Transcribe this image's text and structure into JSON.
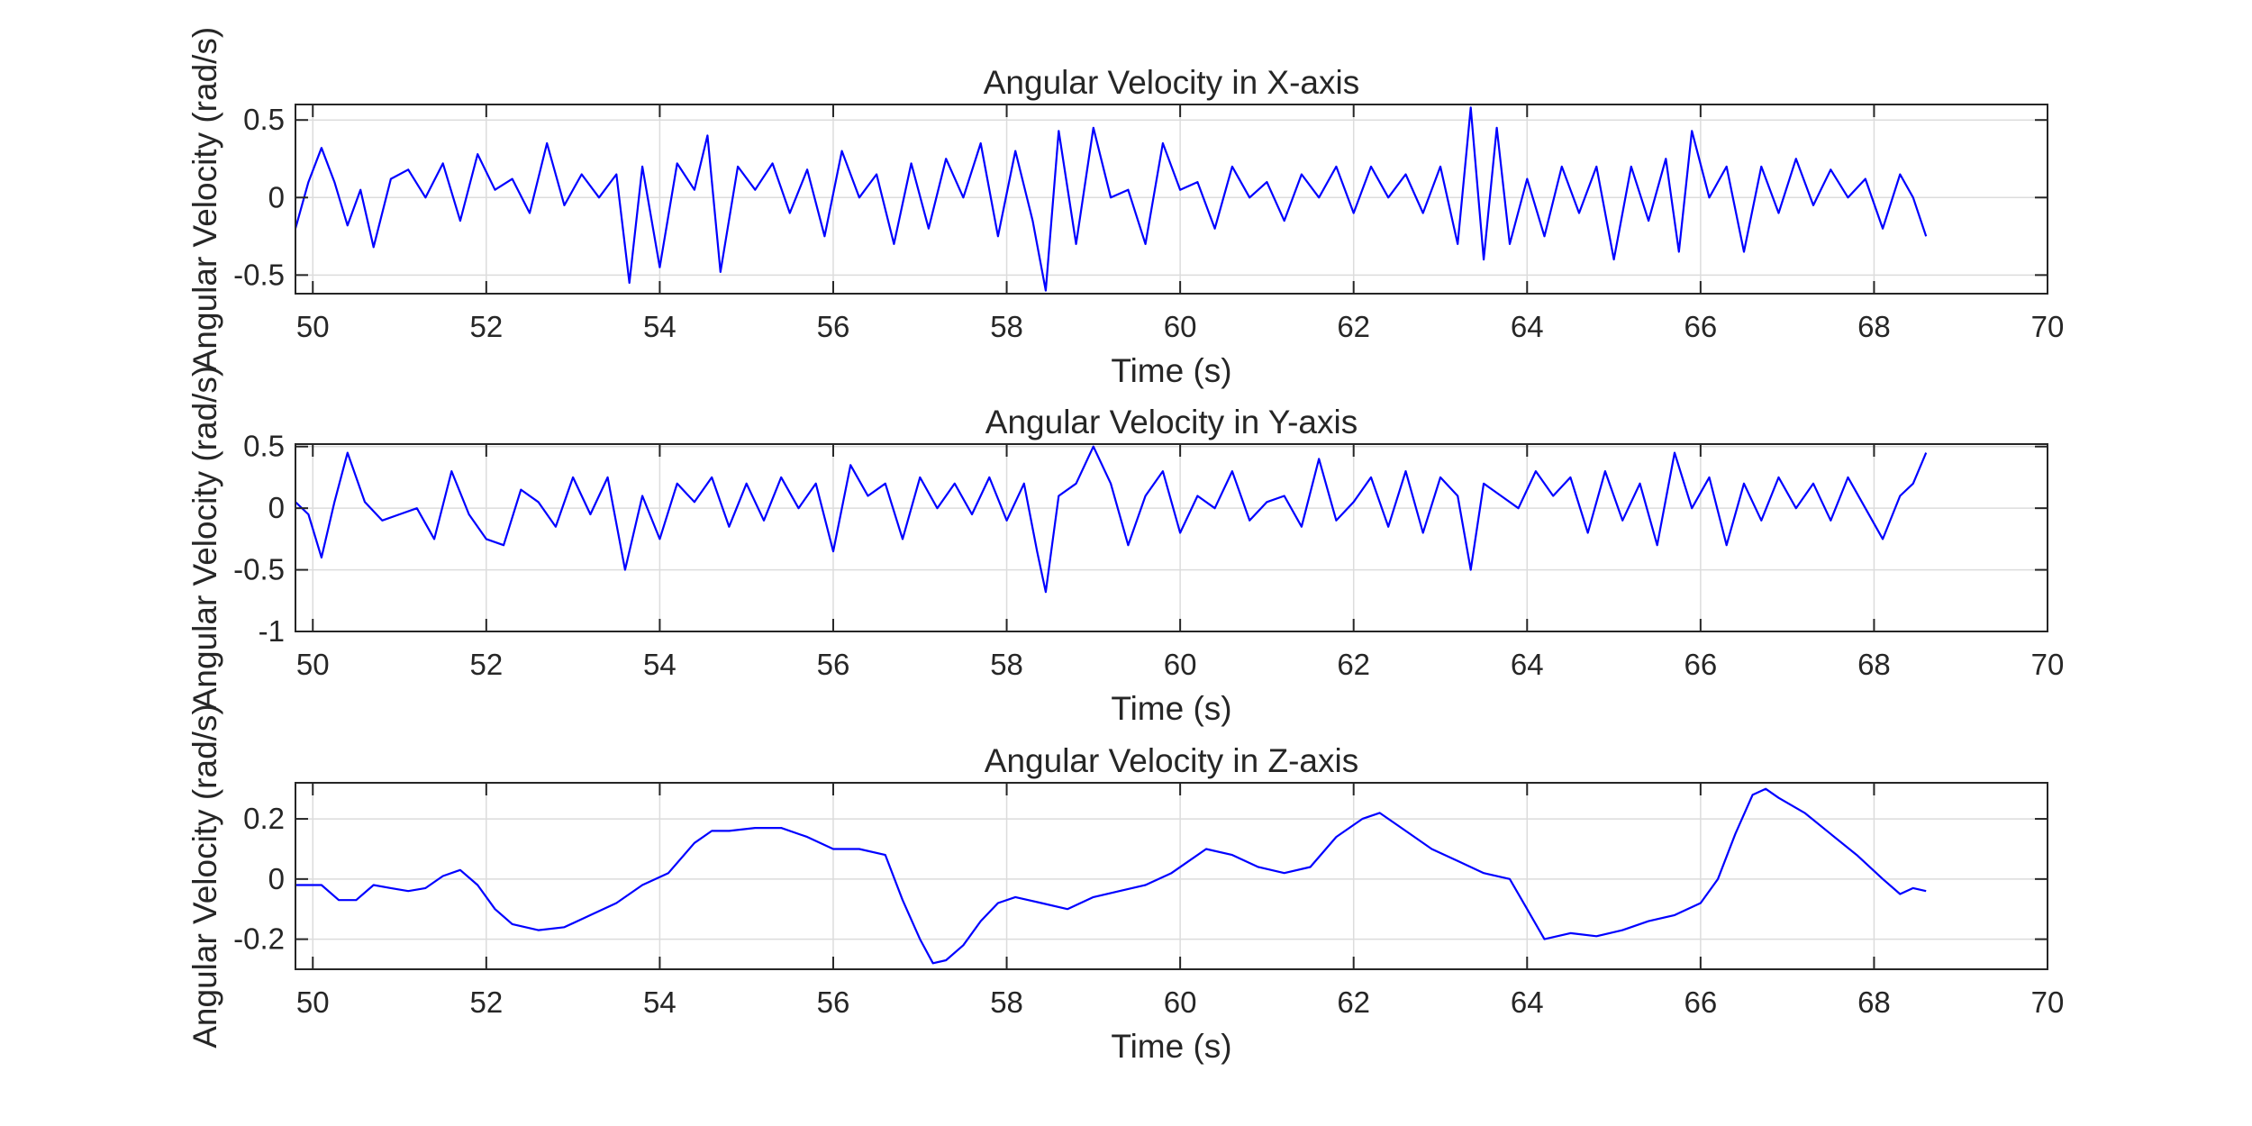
{
  "chart_data": [
    {
      "type": "line",
      "title": "Angular Velocity in X-axis",
      "xlabel": "Time (s)",
      "ylabel": "Angular Velocity (rad/s)",
      "xlim": [
        49.8,
        70
      ],
      "ylim": [
        -0.62,
        0.6
      ],
      "xticks": [
        50,
        52,
        54,
        56,
        58,
        60,
        62,
        64,
        66,
        68,
        70
      ],
      "yticks": [
        -0.5,
        0,
        0.5
      ],
      "xtick_labels": [
        "50",
        "52",
        "54",
        "56",
        "58",
        "60",
        "62",
        "64",
        "66",
        "68",
        "70"
      ],
      "ytick_labels": [
        "-0.5",
        "0",
        "0.5"
      ],
      "grid": true,
      "color": "#0000ff",
      "series": [
        {
          "x": [
            49.8,
            49.95,
            50.1,
            50.25,
            50.4,
            50.55,
            50.7,
            50.9,
            51.1,
            51.3,
            51.5,
            51.7,
            51.9,
            52.1,
            52.3,
            52.5,
            52.7,
            52.9,
            53.1,
            53.3,
            53.5,
            53.65,
            53.8,
            54.0,
            54.2,
            54.4,
            54.55,
            54.7,
            54.9,
            55.1,
            55.3,
            55.5,
            55.7,
            55.9,
            56.1,
            56.3,
            56.5,
            56.7,
            56.9,
            57.1,
            57.3,
            57.5,
            57.7,
            57.9,
            58.1,
            58.3,
            58.45,
            58.6,
            58.8,
            59.0,
            59.2,
            59.4,
            59.6,
            59.8,
            60.0,
            60.2,
            60.4,
            60.6,
            60.8,
            61.0,
            61.2,
            61.4,
            61.6,
            61.8,
            62.0,
            62.2,
            62.4,
            62.6,
            62.8,
            63.0,
            63.2,
            63.35,
            63.5,
            63.65,
            63.8,
            64.0,
            64.2,
            64.4,
            64.6,
            64.8,
            65.0,
            65.2,
            65.4,
            65.6,
            65.75,
            65.9,
            66.1,
            66.3,
            66.5,
            66.7,
            66.9,
            67.1,
            67.3,
            67.5,
            67.7,
            67.9,
            68.1,
            68.3,
            68.45,
            68.6
          ],
          "y": [
            -0.2,
            0.1,
            0.32,
            0.1,
            -0.18,
            0.05,
            -0.32,
            0.12,
            0.18,
            0.0,
            0.22,
            -0.15,
            0.28,
            0.05,
            0.12,
            -0.1,
            0.35,
            -0.05,
            0.15,
            0.0,
            0.15,
            -0.55,
            0.2,
            -0.45,
            0.22,
            0.05,
            0.4,
            -0.48,
            0.2,
            0.05,
            0.22,
            -0.1,
            0.18,
            -0.25,
            0.3,
            0.0,
            0.15,
            -0.3,
            0.22,
            -0.2,
            0.25,
            0.0,
            0.35,
            -0.25,
            0.3,
            -0.15,
            -0.6,
            0.43,
            -0.3,
            0.45,
            0.0,
            0.05,
            -0.3,
            0.35,
            0.05,
            0.1,
            -0.2,
            0.2,
            0.0,
            0.1,
            -0.15,
            0.15,
            0.0,
            0.2,
            -0.1,
            0.2,
            0.0,
            0.15,
            -0.1,
            0.2,
            -0.3,
            0.58,
            -0.4,
            0.45,
            -0.3,
            0.12,
            -0.25,
            0.2,
            -0.1,
            0.2,
            -0.4,
            0.2,
            -0.15,
            0.25,
            -0.35,
            0.43,
            0.0,
            0.2,
            -0.35,
            0.2,
            -0.1,
            0.25,
            -0.05,
            0.18,
            0.0,
            0.12,
            -0.2,
            0.15,
            0.0,
            -0.25
          ]
        }
      ]
    },
    {
      "type": "line",
      "title": "Angular Velocity in Y-axis",
      "xlabel": "Time (s)",
      "ylabel": "Angular Velocity (rad/s)",
      "xlim": [
        49.8,
        70
      ],
      "ylim": [
        -1,
        0.52
      ],
      "xticks": [
        50,
        52,
        54,
        56,
        58,
        60,
        62,
        64,
        66,
        68,
        70
      ],
      "yticks": [
        -1,
        -0.5,
        0,
        0.5
      ],
      "xtick_labels": [
        "50",
        "52",
        "54",
        "56",
        "58",
        "60",
        "62",
        "64",
        "66",
        "68",
        "70"
      ],
      "ytick_labels": [
        "-1",
        "-0.5",
        "0",
        "0.5"
      ],
      "grid": true,
      "color": "#0000ff",
      "series": [
        {
          "x": [
            49.8,
            49.95,
            50.1,
            50.25,
            50.4,
            50.6,
            50.8,
            51.0,
            51.2,
            51.4,
            51.6,
            51.8,
            52.0,
            52.2,
            52.4,
            52.6,
            52.8,
            53.0,
            53.2,
            53.4,
            53.6,
            53.8,
            54.0,
            54.2,
            54.4,
            54.6,
            54.8,
            55.0,
            55.2,
            55.4,
            55.6,
            55.8,
            56.0,
            56.2,
            56.4,
            56.6,
            56.8,
            57.0,
            57.2,
            57.4,
            57.6,
            57.8,
            58.0,
            58.2,
            58.35,
            58.45,
            58.6,
            58.8,
            59.0,
            59.2,
            59.4,
            59.6,
            59.8,
            60.0,
            60.2,
            60.4,
            60.6,
            60.8,
            61.0,
            61.2,
            61.4,
            61.6,
            61.8,
            62.0,
            62.2,
            62.4,
            62.6,
            62.8,
            63.0,
            63.2,
            63.35,
            63.5,
            63.7,
            63.9,
            64.1,
            64.3,
            64.5,
            64.7,
            64.9,
            65.1,
            65.3,
            65.5,
            65.7,
            65.9,
            66.1,
            66.3,
            66.5,
            66.7,
            66.9,
            67.1,
            67.3,
            67.5,
            67.7,
            67.9,
            68.1,
            68.3,
            68.45,
            68.6
          ],
          "y": [
            0.05,
            -0.05,
            -0.4,
            0.05,
            0.45,
            0.05,
            -0.1,
            -0.05,
            0.0,
            -0.25,
            0.3,
            -0.05,
            -0.25,
            -0.3,
            0.15,
            0.05,
            -0.15,
            0.25,
            -0.05,
            0.25,
            -0.5,
            0.1,
            -0.25,
            0.2,
            0.05,
            0.25,
            -0.15,
            0.2,
            -0.1,
            0.25,
            0.0,
            0.2,
            -0.35,
            0.35,
            0.1,
            0.2,
            -0.25,
            0.25,
            0.0,
            0.2,
            -0.05,
            0.25,
            -0.1,
            0.2,
            -0.35,
            -0.68,
            0.1,
            0.2,
            0.5,
            0.2,
            -0.3,
            0.1,
            0.3,
            -0.2,
            0.1,
            0.0,
            0.3,
            -0.1,
            0.05,
            0.1,
            -0.15,
            0.4,
            -0.1,
            0.05,
            0.25,
            -0.15,
            0.3,
            -0.2,
            0.25,
            0.1,
            -0.5,
            0.2,
            0.1,
            0.0,
            0.3,
            0.1,
            0.25,
            -0.2,
            0.3,
            -0.1,
            0.2,
            -0.3,
            0.45,
            0.0,
            0.25,
            -0.3,
            0.2,
            -0.1,
            0.25,
            0.0,
            0.2,
            -0.1,
            0.25,
            0.0,
            -0.25,
            0.1,
            0.2,
            0.45
          ]
        }
      ]
    },
    {
      "type": "line",
      "title": "Angular Velocity in Z-axis",
      "xlabel": "Time (s)",
      "ylabel": "Angular Velocity (rad/s)",
      "xlim": [
        49.8,
        70
      ],
      "ylim": [
        -0.3,
        0.32
      ],
      "xticks": [
        50,
        52,
        54,
        56,
        58,
        60,
        62,
        64,
        66,
        68,
        70
      ],
      "yticks": [
        -0.2,
        0,
        0.2
      ],
      "xtick_labels": [
        "50",
        "52",
        "54",
        "56",
        "58",
        "60",
        "62",
        "64",
        "66",
        "68",
        "70"
      ],
      "ytick_labels": [
        "-0.2",
        "0",
        "0.2"
      ],
      "grid": true,
      "color": "#0000ff",
      "series": [
        {
          "x": [
            49.8,
            50.1,
            50.3,
            50.5,
            50.7,
            50.9,
            51.1,
            51.3,
            51.5,
            51.7,
            51.9,
            52.1,
            52.3,
            52.6,
            52.9,
            53.2,
            53.5,
            53.8,
            54.1,
            54.4,
            54.6,
            54.8,
            55.1,
            55.4,
            55.7,
            56.0,
            56.3,
            56.6,
            56.8,
            57.0,
            57.15,
            57.3,
            57.5,
            57.7,
            57.9,
            58.1,
            58.4,
            58.7,
            59.0,
            59.3,
            59.6,
            59.9,
            60.1,
            60.3,
            60.6,
            60.9,
            61.2,
            61.5,
            61.8,
            62.1,
            62.3,
            62.6,
            62.9,
            63.2,
            63.5,
            63.8,
            64.0,
            64.2,
            64.5,
            64.8,
            65.1,
            65.4,
            65.7,
            66.0,
            66.2,
            66.4,
            66.6,
            66.75,
            66.9,
            67.2,
            67.5,
            67.8,
            68.1,
            68.3,
            68.45,
            68.6
          ],
          "y": [
            -0.02,
            -0.02,
            -0.07,
            -0.07,
            -0.02,
            -0.03,
            -0.04,
            -0.03,
            0.01,
            0.03,
            -0.02,
            -0.1,
            -0.15,
            -0.17,
            -0.16,
            -0.12,
            -0.08,
            -0.02,
            0.02,
            0.12,
            0.16,
            0.16,
            0.17,
            0.17,
            0.14,
            0.1,
            0.1,
            0.08,
            -0.07,
            -0.2,
            -0.28,
            -0.27,
            -0.22,
            -0.14,
            -0.08,
            -0.06,
            -0.08,
            -0.1,
            -0.06,
            -0.04,
            -0.02,
            0.02,
            0.06,
            0.1,
            0.08,
            0.04,
            0.02,
            0.04,
            0.14,
            0.2,
            0.22,
            0.16,
            0.1,
            0.06,
            0.02,
            0.0,
            -0.1,
            -0.2,
            -0.18,
            -0.19,
            -0.17,
            -0.14,
            -0.12,
            -0.08,
            0.0,
            0.15,
            0.28,
            0.3,
            0.27,
            0.22,
            0.15,
            0.08,
            0.0,
            -0.05,
            -0.03,
            -0.04
          ]
        }
      ]
    }
  ]
}
